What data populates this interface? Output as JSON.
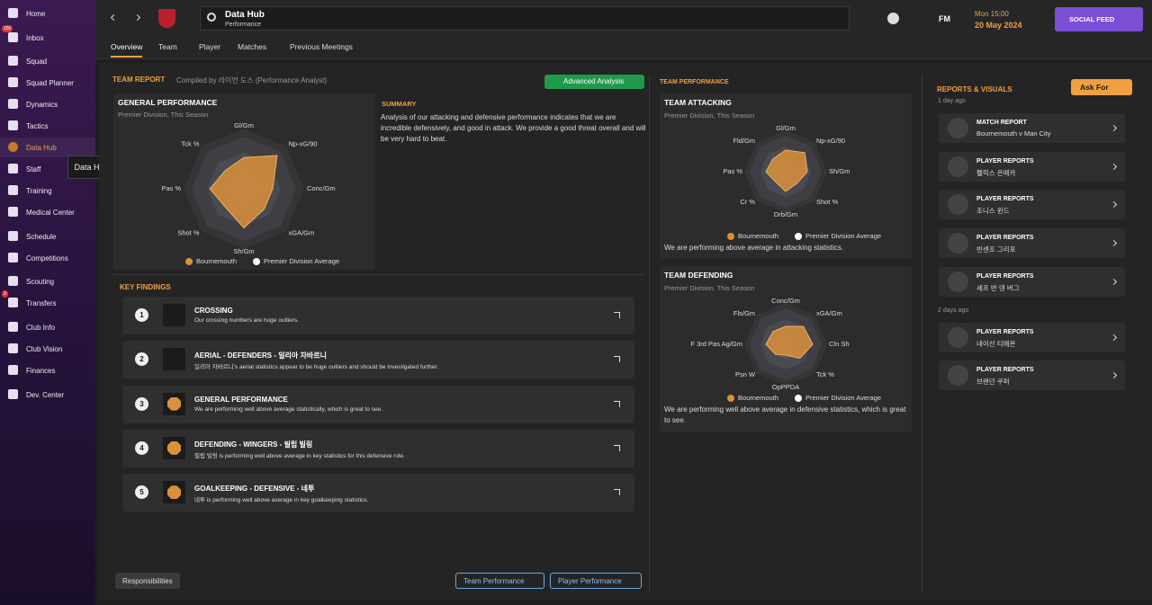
{
  "sidebar": {
    "items": [
      {
        "label": "Home"
      },
      {
        "label": "Inbox",
        "badge": "150"
      },
      {
        "label": "Squad"
      },
      {
        "label": "Squad Planner"
      },
      {
        "label": "Dynamics"
      },
      {
        "label": "Tactics"
      },
      {
        "label": "Data Hub"
      },
      {
        "label": "Staff"
      },
      {
        "label": "Training"
      },
      {
        "label": "Medical Center"
      },
      {
        "label": "Schedule"
      },
      {
        "label": "Competitions"
      },
      {
        "label": "Scouting"
      },
      {
        "label": "Transfers",
        "badge": "3"
      },
      {
        "label": "Club Info"
      },
      {
        "label": "Club Vision"
      },
      {
        "label": "Finances"
      },
      {
        "label": "Dev. Center"
      }
    ],
    "tooltip": "Data Hub"
  },
  "header": {
    "title": "Data Hub",
    "subtitle": "Performance",
    "logo": "FM",
    "time": "Mon 15:00",
    "date": "20 May 2024",
    "social": "SOCIAL FEED"
  },
  "tabs": [
    "Overview",
    "Team",
    "Player",
    "Matches",
    "Previous Meetings"
  ],
  "team_report": {
    "title": "TEAM REPORT",
    "compiled": "Compiled by 라이언 도스 (Performance Analyst)",
    "advanced": "Advanced Analysis"
  },
  "general_performance": {
    "title": "GENERAL PERFORMANCE",
    "subtitle": "Premier Division, This Season",
    "axes": [
      "Gl/Gm",
      "Np-xG/90",
      "Conc/Gm",
      "xGA/Gm",
      "Sh/Gm",
      "Shot %",
      "Pas %",
      "Tck %"
    ],
    "values": [
      60,
      90,
      55,
      55,
      75,
      50,
      65,
      50
    ],
    "color": "#d9913a",
    "legend": [
      "Bournemouth",
      "Premier Division Average"
    ]
  },
  "summary": {
    "title": "SUMMARY",
    "text": "Analysis of our attacking and defensive performance indicates that we are incredible defensively, and good in attack. We provide a good threat overall and will be very hard to beat."
  },
  "key_findings": {
    "title": "KEY FINDINGS",
    "items": [
      {
        "number": "1",
        "title": "CROSSING",
        "text": "Our crossing numbers are huge outliers."
      },
      {
        "number": "2",
        "title": "AERIAL - DEFENDERS - 일리아 자바르니",
        "text": "일리아 자바르니's aerial statistics appear to be huge outliers and should be investigated further."
      },
      {
        "number": "3",
        "title": "GENERAL PERFORMANCE",
        "text": "We are performing well above average statistically, which is great to see."
      },
      {
        "number": "4",
        "title": "DEFENDING - WINGERS - 필립 빌링",
        "text": "필립 빌링 is performing well above average in key statistics for this defensive role."
      },
      {
        "number": "5",
        "title": "GOALKEEPING - DEFENSIVE - 네투",
        "text": "네투 is performing well above average in key goalkeeping statistics."
      }
    ]
  },
  "team_performance": {
    "title": "TEAM PERFORMANCE",
    "attacking": {
      "title": "TEAM ATTACKING",
      "subtitle": "Premier Division, This Season",
      "axes": [
        "Gl/Gm",
        "Np-xG/90",
        "Sh/Gm",
        "Shot %",
        "Drb/Gm",
        "Cr %",
        "Pas %",
        "Fld/Gm"
      ],
      "values": [
        60,
        75,
        60,
        45,
        55,
        40,
        55,
        50
      ],
      "color": "#d9913a",
      "legend": [
        "Bournemouth",
        "Premier Division Average"
      ],
      "text": "We are performing above average in attacking statistics."
    },
    "defending": {
      "title": "TEAM DEFENDING",
      "subtitle": "Premier Division, This Season",
      "axes": [
        "Conc/Gm",
        "xGA/Gm",
        "Cln Sh",
        "Tck %",
        "OpPPDA",
        "Psn W",
        "F 3rd Pas Ag/Gm",
        "Fls/Gm"
      ],
      "values": [
        50,
        70,
        75,
        55,
        30,
        40,
        55,
        50
      ],
      "color": "#d9913a",
      "legend": [
        "Bournemouth",
        "Premier Division Average"
      ],
      "text": "We are performing well above average in defensive statistics, which is great to see."
    }
  },
  "reports": {
    "title": "REPORTS & VISUALS",
    "ask": "Ask For",
    "groups": [
      {
        "label": "1 day ago",
        "items": [
          {
            "title": "MATCH REPORT",
            "sub": "Bournemouth v Man City"
          },
          {
            "title": "PLAYER REPORTS",
            "sub": "펠릭스 은메카"
          },
          {
            "title": "PLAYER REPORTS",
            "sub": "조니스 윈드"
          },
          {
            "title": "PLAYER REPORTS",
            "sub": "빈센조 그리포"
          },
          {
            "title": "PLAYER REPORTS",
            "sub": "세프 반 덴 버그"
          }
        ]
      },
      {
        "label": "2 days ago",
        "items": [
          {
            "title": "PLAYER REPORTS",
            "sub": "네이선 티에온"
          },
          {
            "title": "PLAYER REPORTS",
            "sub": "브랜던 쿠퍼"
          }
        ]
      }
    ]
  },
  "footer": {
    "responsibilities": "Responsibilities",
    "buttons": [
      "Team Performance",
      "Player Performance"
    ]
  }
}
